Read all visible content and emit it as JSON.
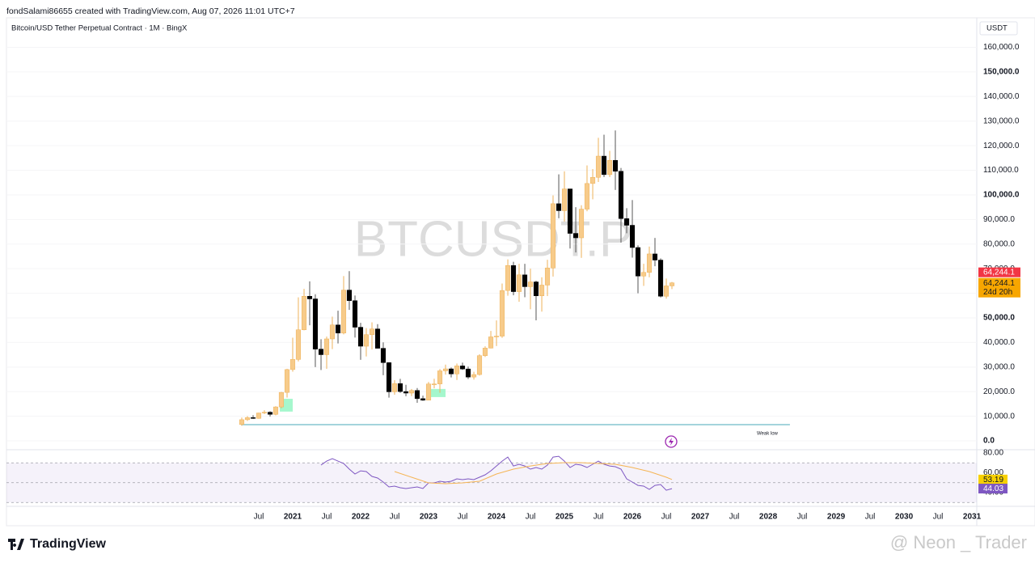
{
  "header": {
    "creator": "fondSalami86655 created with TradingView.com, Aug 07, 2026 11:01 UTC+7"
  },
  "chart_data": [
    {
      "type": "candlestick",
      "title": "Bitcoin/USD Tether Perpetual Contract · 1M · BingX",
      "watermark": "BTCUSDT.P",
      "currency": "USDT",
      "up_color": "#f7cb8a",
      "up_border": "#eeb25a",
      "down_color": "#000000",
      "grid": true,
      "xlim": [
        2016.786,
        2031.071
      ],
      "xticks": [
        {
          "value": 2020.5,
          "label": "Jul"
        },
        2021,
        {
          "value": 2021.5,
          "label": "Jul"
        },
        2022,
        {
          "value": 2022.5,
          "label": "Jul"
        },
        2023,
        {
          "value": 2023.5,
          "label": "Jul"
        },
        2024,
        {
          "value": 2024.5,
          "label": "Jul"
        },
        2025,
        {
          "value": 2025.5,
          "label": "Jul"
        },
        2026,
        {
          "value": 2026.5,
          "label": "Jul"
        },
        2027,
        {
          "value": 2027.5,
          "label": "Jul"
        },
        2028,
        {
          "value": 2028.5,
          "label": "Jul"
        },
        2029,
        {
          "value": 2029.5,
          "label": "Jul"
        },
        2030,
        {
          "value": 2030.5,
          "label": "Jul"
        },
        2031
      ],
      "ylim": [
        -3600,
        172000
      ],
      "yticks": [
        {
          "value": 0,
          "label": "0.0"
        },
        {
          "value": 10000,
          "label": "10,000.0"
        },
        {
          "value": 20000,
          "label": "20,000.0"
        },
        {
          "value": 30000,
          "label": "30,000.0"
        },
        {
          "value": 40000,
          "label": "40,000.0"
        },
        {
          "value": 50000,
          "label": "50,000.0"
        },
        {
          "value": 60000,
          "label": "60,000.0"
        },
        {
          "value": 70000,
          "label": "70,000.0"
        },
        {
          "value": 80000,
          "label": "80,000.0"
        },
        {
          "value": 90000,
          "label": "90,000.0"
        },
        {
          "value": 100000,
          "label": "100,000.0"
        },
        {
          "value": 110000,
          "label": "110,000.0"
        },
        {
          "value": 120000,
          "label": "120,000.0"
        },
        {
          "value": 130000,
          "label": "130,000.0"
        },
        {
          "value": 140000,
          "label": "140,000.0"
        },
        {
          "value": 150000,
          "label": "150,000.0"
        },
        {
          "value": 160000,
          "label": "160,000.0"
        }
      ],
      "x": [
        2020.25,
        2020.333,
        2020.417,
        2020.5,
        2020.583,
        2020.667,
        2020.75,
        2020.833,
        2020.917,
        2021,
        2021.083,
        2021.167,
        2021.25,
        2021.333,
        2021.417,
        2021.5,
        2021.583,
        2021.667,
        2021.75,
        2021.833,
        2021.917,
        2022,
        2022.083,
        2022.167,
        2022.25,
        2022.333,
        2022.417,
        2022.5,
        2022.583,
        2022.667,
        2022.75,
        2022.833,
        2022.917,
        2023,
        2023.083,
        2023.167,
        2023.25,
        2023.333,
        2023.417,
        2023.5,
        2023.583,
        2023.667,
        2023.75,
        2023.833,
        2023.917,
        2024,
        2024.083,
        2024.167,
        2024.25,
        2024.333,
        2024.417,
        2024.5,
        2024.583,
        2024.667,
        2024.75,
        2024.833,
        2024.917,
        2025,
        2025.083,
        2025.167,
        2025.25,
        2025.333,
        2025.417,
        2025.5,
        2025.583,
        2025.667,
        2025.75,
        2025.833,
        2025.917,
        2026,
        2026.083,
        2026.167,
        2026.25,
        2026.333,
        2026.417,
        2026.5,
        2026.583
      ],
      "open": [
        6650,
        8600,
        9450,
        9140,
        11330,
        11650,
        10780,
        13800,
        19700,
        28990,
        33110,
        45160,
        58800,
        57720,
        37300,
        35040,
        41460,
        47130,
        43820,
        61300,
        57000,
        46200,
        38480,
        43190,
        45510,
        37630,
        31800,
        19940,
        23300,
        20050,
        19420,
        20490,
        17160,
        16540,
        23130,
        23150,
        28470,
        29270,
        27210,
        30470,
        29230,
        25940,
        26960,
        34640,
        37720,
        42280,
        42580,
        61130,
        71290,
        60670,
        67490,
        62680,
        64620,
        58970,
        63330,
        70290,
        96410,
        93580,
        102430,
        84350,
        82550,
        94210,
        104640,
        107140,
        115760,
        108250,
        114050,
        109610,
        90360,
        87650,
        78600,
        67000,
        68500,
        76000,
        73500,
        58800,
        63000
      ],
      "high": [
        9480,
        10070,
        10430,
        11450,
        12470,
        12050,
        14100,
        19900,
        29300,
        41950,
        58350,
        61800,
        64850,
        59600,
        41330,
        42400,
        50500,
        52920,
        66999,
        69000,
        59100,
        47990,
        45850,
        48190,
        47450,
        40050,
        31990,
        24670,
        25210,
        22800,
        21090,
        21480,
        18390,
        23960,
        25250,
        29190,
        31000,
        29820,
        31430,
        31800,
        30200,
        28100,
        35200,
        38450,
        44700,
        48970,
        63970,
        73780,
        72800,
        71980,
        71980,
        70020,
        65100,
        66500,
        73620,
        99800,
        108350,
        109590,
        102500,
        95000,
        95800,
        111980,
        110500,
        123220,
        124470,
        117900,
        126200,
        110950,
        94600,
        97900,
        79500,
        72000,
        79000,
        82500,
        74200,
        66000,
        64600
      ],
      "low": [
        6150,
        8100,
        8900,
        8990,
        10900,
        9900,
        10400,
        13200,
        17600,
        28130,
        32300,
        44950,
        47000,
        30000,
        28800,
        29300,
        37300,
        39600,
        43300,
        53250,
        42000,
        32950,
        34320,
        37150,
        37600,
        26700,
        17570,
        18780,
        19520,
        18150,
        18190,
        15480,
        16250,
        16500,
        21350,
        19550,
        26950,
        25800,
        24750,
        28850,
        25150,
        24900,
        26550,
        34100,
        37600,
        38550,
        41880,
        59000,
        59190,
        56550,
        58400,
        53500,
        49000,
        52540,
        58870,
        66800,
        90500,
        89160,
        78200,
        76600,
        74400,
        93350,
        98200,
        105250,
        107250,
        107250,
        102000,
        80600,
        84400,
        74500,
        60000,
        63000,
        66500,
        71000,
        58300,
        57800,
        61700
      ],
      "close": [
        8600,
        9450,
        9140,
        11330,
        11650,
        10780,
        13800,
        19700,
        28990,
        33110,
        45160,
        58800,
        57720,
        37300,
        35040,
        41460,
        47130,
        43820,
        61300,
        57000,
        46200,
        38480,
        43190,
        45510,
        37630,
        31800,
        19940,
        23300,
        20050,
        19420,
        20490,
        17160,
        16540,
        23130,
        23150,
        28470,
        29270,
        27210,
        30470,
        29230,
        25940,
        26960,
        34640,
        37720,
        42280,
        42580,
        61130,
        71290,
        60670,
        67490,
        62680,
        64620,
        58970,
        63330,
        70290,
        96410,
        93580,
        102430,
        84350,
        82550,
        94210,
        104640,
        107140,
        115760,
        108250,
        114050,
        109610,
        90360,
        87650,
        78600,
        67000,
        68500,
        76000,
        73500,
        58800,
        63000,
        64244.1
      ],
      "last_close_label": "64,244.1",
      "countdown": "24d 20h",
      "annotations": [
        {
          "label": "Weak low",
          "value": 6600,
          "x": [
            2020.24,
            2028.32
          ],
          "color": "#4aa8b8"
        }
      ],
      "zones": [
        {
          "x": [
            2020.81,
            2021.0
          ],
          "y": [
            11900,
            17100
          ],
          "color": "#8ff5c0"
        },
        {
          "x": [
            2023.036,
            2023.25
          ],
          "y": [
            17800,
            21100
          ],
          "color": "#8ff5c0"
        }
      ]
    },
    {
      "type": "line",
      "ylim": [
        26.1,
        83.3
      ],
      "yticks": [
        {
          "value": 80,
          "label": "80.00"
        },
        {
          "value": 60,
          "label": "60.00"
        },
        {
          "value": 40,
          "label": "40.00"
        }
      ],
      "bands": [
        70,
        50,
        30
      ],
      "band_color": "#7e57c2",
      "series": [
        {
          "color": "#7e57c2",
          "x": [
            2021.417,
            2021.5,
            2021.583,
            2021.667,
            2021.75,
            2021.833,
            2021.917,
            2022,
            2022.083,
            2022.167,
            2022.25,
            2022.333,
            2022.417,
            2022.5,
            2022.583,
            2022.667,
            2022.75,
            2022.833,
            2022.917,
            2023,
            2023.083,
            2023.167,
            2023.25,
            2023.333,
            2023.417,
            2023.5,
            2023.583,
            2023.667,
            2023.75,
            2023.833,
            2023.917,
            2024,
            2024.083,
            2024.167,
            2024.25,
            2024.333,
            2024.417,
            2024.5,
            2024.583,
            2024.667,
            2024.75,
            2024.833,
            2024.917,
            2025,
            2025.083,
            2025.167,
            2025.25,
            2025.333,
            2025.417,
            2025.5,
            2025.583,
            2025.667,
            2025.75,
            2025.833,
            2025.917,
            2026,
            2026.083,
            2026.167,
            2026.25,
            2026.333,
            2026.417,
            2026.5,
            2026.583
          ],
          "values": [
            67.8,
            71.8,
            74.3,
            71.8,
            69.4,
            63.7,
            58.8,
            62.0,
            61.2,
            56.3,
            54.7,
            50.6,
            45.7,
            46.5,
            44.9,
            44.1,
            44.9,
            45.7,
            44.1,
            49.8,
            49.8,
            51.4,
            50.6,
            51.4,
            53.9,
            53.1,
            53.9,
            53.1,
            55.5,
            58.0,
            62.0,
            66.9,
            71.8,
            75.9,
            66.9,
            68.6,
            66.9,
            63.7,
            65.3,
            63.7,
            67.8,
            75.9,
            76.7,
            71.8,
            65.3,
            68.6,
            67.8,
            65.3,
            68.6,
            71.8,
            68.6,
            66.9,
            66.1,
            63.7,
            53.9,
            50.6,
            47.3,
            46.5,
            43.3,
            47.3,
            48.2,
            42.4,
            44.03
          ]
        },
        {
          "color": "#f5b555",
          "x": [
            2022.5,
            2022.75,
            2023,
            2023.25,
            2023.5,
            2023.75,
            2024,
            2024.25,
            2024.5,
            2024.75,
            2025,
            2025.25,
            2025.5,
            2025.75,
            2026,
            2026.25,
            2026.5,
            2026.583
          ],
          "values": [
            61.2,
            55.5,
            49.8,
            49.0,
            49.8,
            51.4,
            58.8,
            63.7,
            66.9,
            69.4,
            70.2,
            70.2,
            69.4,
            68.6,
            65.3,
            61.2,
            55.5,
            53.19
          ]
        }
      ]
    }
  ],
  "footer": {
    "logo": "TradingView",
    "watermark": "@ Neon _ Trader"
  }
}
